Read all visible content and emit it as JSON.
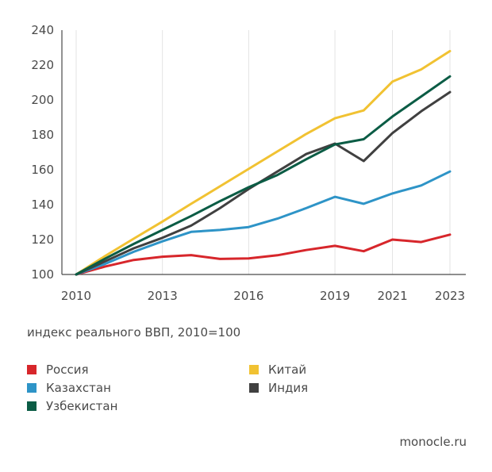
{
  "chart_data": {
    "type": "line",
    "caption": "индекс реального ВВП, 2010=100",
    "x": [
      2010,
      2011,
      2012,
      2013,
      2014,
      2015,
      2016,
      2017,
      2018,
      2019,
      2020,
      2021,
      2022,
      2023
    ],
    "xticks": [
      "2010",
      "2013",
      "2016",
      "2019",
      "2021",
      "2023"
    ],
    "xtick_values": [
      2010,
      2013,
      2016,
      2019,
      2021,
      2023
    ],
    "ylim": [
      100,
      240
    ],
    "yticks": [
      "100",
      "120",
      "140",
      "160",
      "180",
      "200",
      "220",
      "240"
    ],
    "ytick_values": [
      100,
      120,
      140,
      160,
      180,
      200,
      220,
      240
    ],
    "grid": "vertical",
    "series": [
      {
        "name": "Россия",
        "color": "#d7262b",
        "values": [
          100,
          104.5,
          108.3,
          110.2,
          111.1,
          108.9,
          109.2,
          111,
          114,
          116.4,
          113.3,
          120,
          118.6,
          122.8
        ]
      },
      {
        "name": "Китай",
        "color": "#f1c232",
        "values": [
          100,
          110.5,
          120.5,
          130.3,
          140.5,
          150.5,
          160.5,
          170.5,
          180.5,
          189.5,
          194,
          210.5,
          217.5,
          228
        ]
      },
      {
        "name": "Казахстан",
        "color": "#2e94c7",
        "values": [
          100,
          106,
          113,
          119,
          124.4,
          125.5,
          127.2,
          132,
          138,
          144.5,
          140.5,
          146.4,
          151,
          159
        ]
      },
      {
        "name": "Индия",
        "color": "#404040",
        "values": [
          100,
          107.5,
          115,
          121,
          128,
          138,
          149,
          159,
          169,
          175,
          165,
          181,
          193.5,
          204.5
        ]
      },
      {
        "name": "Узбекистан",
        "color": "#0b5c45",
        "values": [
          100,
          109,
          117.5,
          125.5,
          133.5,
          142,
          150,
          157,
          166,
          174.5,
          177.5,
          190.5,
          202,
          213.5
        ]
      }
    ]
  },
  "legend": [
    {
      "label": "Россия",
      "color": "#d7262b"
    },
    {
      "label": "Китай",
      "color": "#f1c232"
    },
    {
      "label": "Казахстан",
      "color": "#2e94c7"
    },
    {
      "label": "Индия",
      "color": "#404040"
    },
    {
      "label": "Узбекистан",
      "color": "#0b5c45"
    }
  ],
  "brand": "monocle.ru"
}
